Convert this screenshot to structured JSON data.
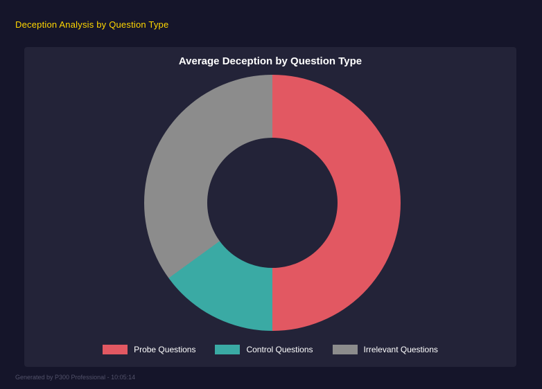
{
  "page": {
    "title": "Deception Analysis by Question Type",
    "footer": "Generated by P300 Professional - 10:05:14"
  },
  "chart_data": {
    "type": "pie",
    "subtype": "donut",
    "title": "Average Deception by Question Type",
    "categories": [
      "Probe Questions",
      "Control Questions",
      "Irrelevant Questions"
    ],
    "values": [
      50,
      15,
      35
    ],
    "colors": [
      "#e25862",
      "#3aaaa4",
      "#8c8c8c"
    ],
    "legend_position": "bottom",
    "start_angle_deg": 0,
    "direction": "clockwise",
    "hole_ratio": 0.51,
    "panel_background": "#232338",
    "page_background": "#15152a",
    "title_color": "#ffffff",
    "accent_color": "#ffd700"
  }
}
